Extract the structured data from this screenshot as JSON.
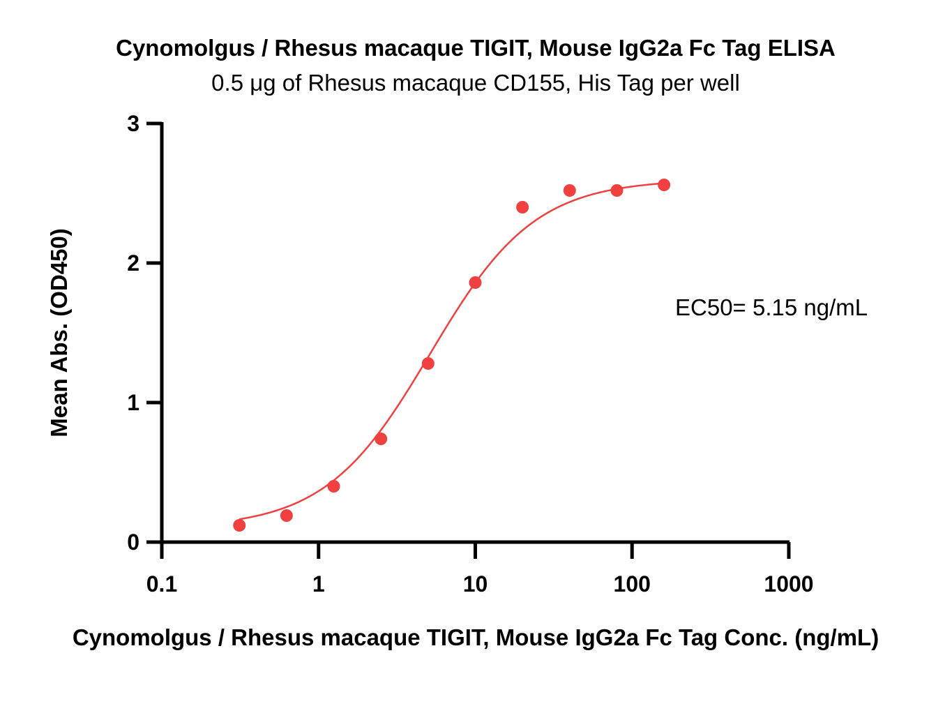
{
  "chart_data": {
    "type": "scatter",
    "title": "Cynomolgus / Rhesus macaque TIGIT, Mouse IgG2a Fc Tag ELISA",
    "subtitle": "0.5 μg of Rhesus macaque CD155, His Tag per well",
    "xlabel": "Cynomolgus / Rhesus macaque TIGIT, Mouse IgG2a Fc Tag Conc. (ng/mL)",
    "ylabel": "Mean Abs. (OD450)",
    "x_scale": "log",
    "xlim": [
      0.1,
      1000
    ],
    "ylim": [
      0,
      3
    ],
    "x_ticks": [
      0.1,
      1,
      10,
      100,
      1000
    ],
    "x_tick_labels": [
      "0.1",
      "1",
      "10",
      "100",
      "1000"
    ],
    "y_ticks": [
      0,
      1,
      2,
      3
    ],
    "y_tick_labels": [
      "0",
      "1",
      "2",
      "3"
    ],
    "grid": false,
    "series": [
      {
        "x": [
          0.3125,
          0.625,
          1.25,
          2.5,
          5,
          10,
          20,
          40,
          80,
          160
        ],
        "y": [
          0.12,
          0.19,
          0.4,
          0.74,
          1.28,
          1.86,
          2.4,
          2.52,
          2.52,
          2.56
        ],
        "color": "#f04040"
      }
    ],
    "fit_curve": {
      "model": "4PL",
      "bottom": 0.1,
      "top": 2.6,
      "ec50": 5.15,
      "hill": 1.3,
      "color": "#f04040"
    },
    "annotation": "EC50= 5.15 ng/mL"
  }
}
